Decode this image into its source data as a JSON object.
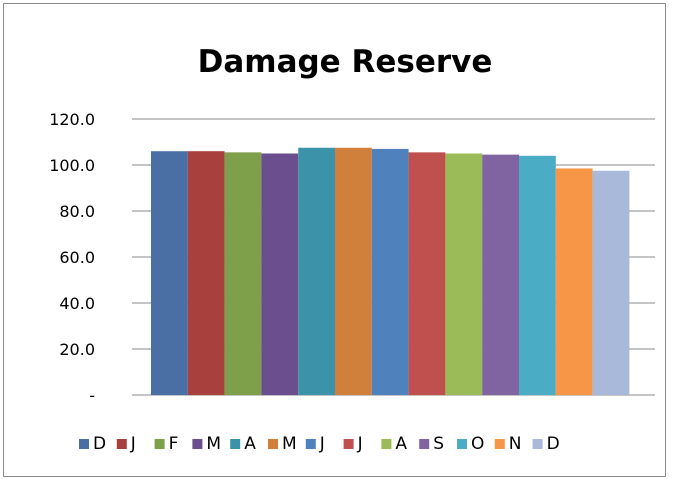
{
  "chart_data": {
    "type": "bar",
    "title": "Damage Reserve",
    "xlabel": "",
    "ylabel": "",
    "ylim": [
      0,
      120
    ],
    "y_ticks": [
      {
        "value": 0,
        "label": "-"
      },
      {
        "value": 20,
        "label": "20.0"
      },
      {
        "value": 40,
        "label": "40.0"
      },
      {
        "value": 60,
        "label": "60.0"
      },
      {
        "value": 80,
        "label": "80.0"
      },
      {
        "value": 100,
        "label": "100.0"
      },
      {
        "value": 120,
        "label": "120.0"
      }
    ],
    "grid": true,
    "legend_position": "bottom",
    "series": [
      {
        "name": "D",
        "values": [
          106.0
        ],
        "color": "#4A6FA5"
      },
      {
        "name": "J",
        "values": [
          106.0
        ],
        "color": "#A8413E"
      },
      {
        "name": "F",
        "values": [
          105.5
        ],
        "color": "#7FA04A"
      },
      {
        "name": "M",
        "values": [
          105.0
        ],
        "color": "#6B4E8E"
      },
      {
        "name": "A",
        "values": [
          107.5
        ],
        "color": "#3A93A8"
      },
      {
        "name": "M",
        "values": [
          107.5
        ],
        "color": "#D0803A"
      },
      {
        "name": "J",
        "values": [
          107.0
        ],
        "color": "#4F81BD"
      },
      {
        "name": "J",
        "values": [
          105.5
        ],
        "color": "#C0504D"
      },
      {
        "name": "A",
        "values": [
          105.0
        ],
        "color": "#9BBB59"
      },
      {
        "name": "S",
        "values": [
          104.5
        ],
        "color": "#8064A2"
      },
      {
        "name": "O",
        "values": [
          104.0
        ],
        "color": "#4BACC6"
      },
      {
        "name": "N",
        "values": [
          98.5
        ],
        "color": "#F79646"
      },
      {
        "name": "D",
        "values": [
          97.5
        ],
        "color": "#A9B9DA"
      }
    ]
  }
}
